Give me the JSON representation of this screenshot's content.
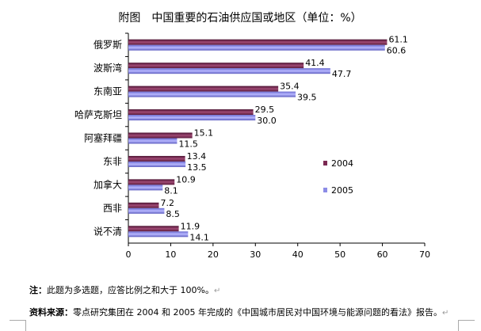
{
  "chart_data": {
    "type": "bar",
    "orientation": "horizontal",
    "title": "附图　中国重要的石油供应国或地区（单位：%）",
    "categories": [
      "俄罗斯",
      "波斯湾",
      "东南亚",
      "哈萨克斯坦",
      "阿塞拜疆",
      "东非",
      "加拿大",
      "西非",
      "说不清"
    ],
    "series": [
      {
        "name": "2004",
        "color": "#7b2952",
        "values": [
          61.1,
          41.4,
          35.4,
          29.5,
          15.1,
          13.4,
          10.9,
          7.2,
          11.9
        ]
      },
      {
        "name": "2005",
        "color": "#8c8ce6",
        "values": [
          60.6,
          47.7,
          39.5,
          30.0,
          11.5,
          13.5,
          8.1,
          8.5,
          14.1
        ]
      }
    ],
    "xlim": [
      0,
      70
    ],
    "xticks": [
      "0",
      "10",
      "20",
      "30",
      "40",
      "50",
      "60",
      "70"
    ],
    "grid": false,
    "legend_position": "right"
  },
  "notes": {
    "note_label": "注：",
    "note_text": "此题为多选题，应答比例之和大于 100%。",
    "source_label": "资料来源：",
    "source_text": "零点研究集团在 2004 和 2005 年完成的《中国城市居民对中国环境与能源问题的看法》报告。"
  }
}
